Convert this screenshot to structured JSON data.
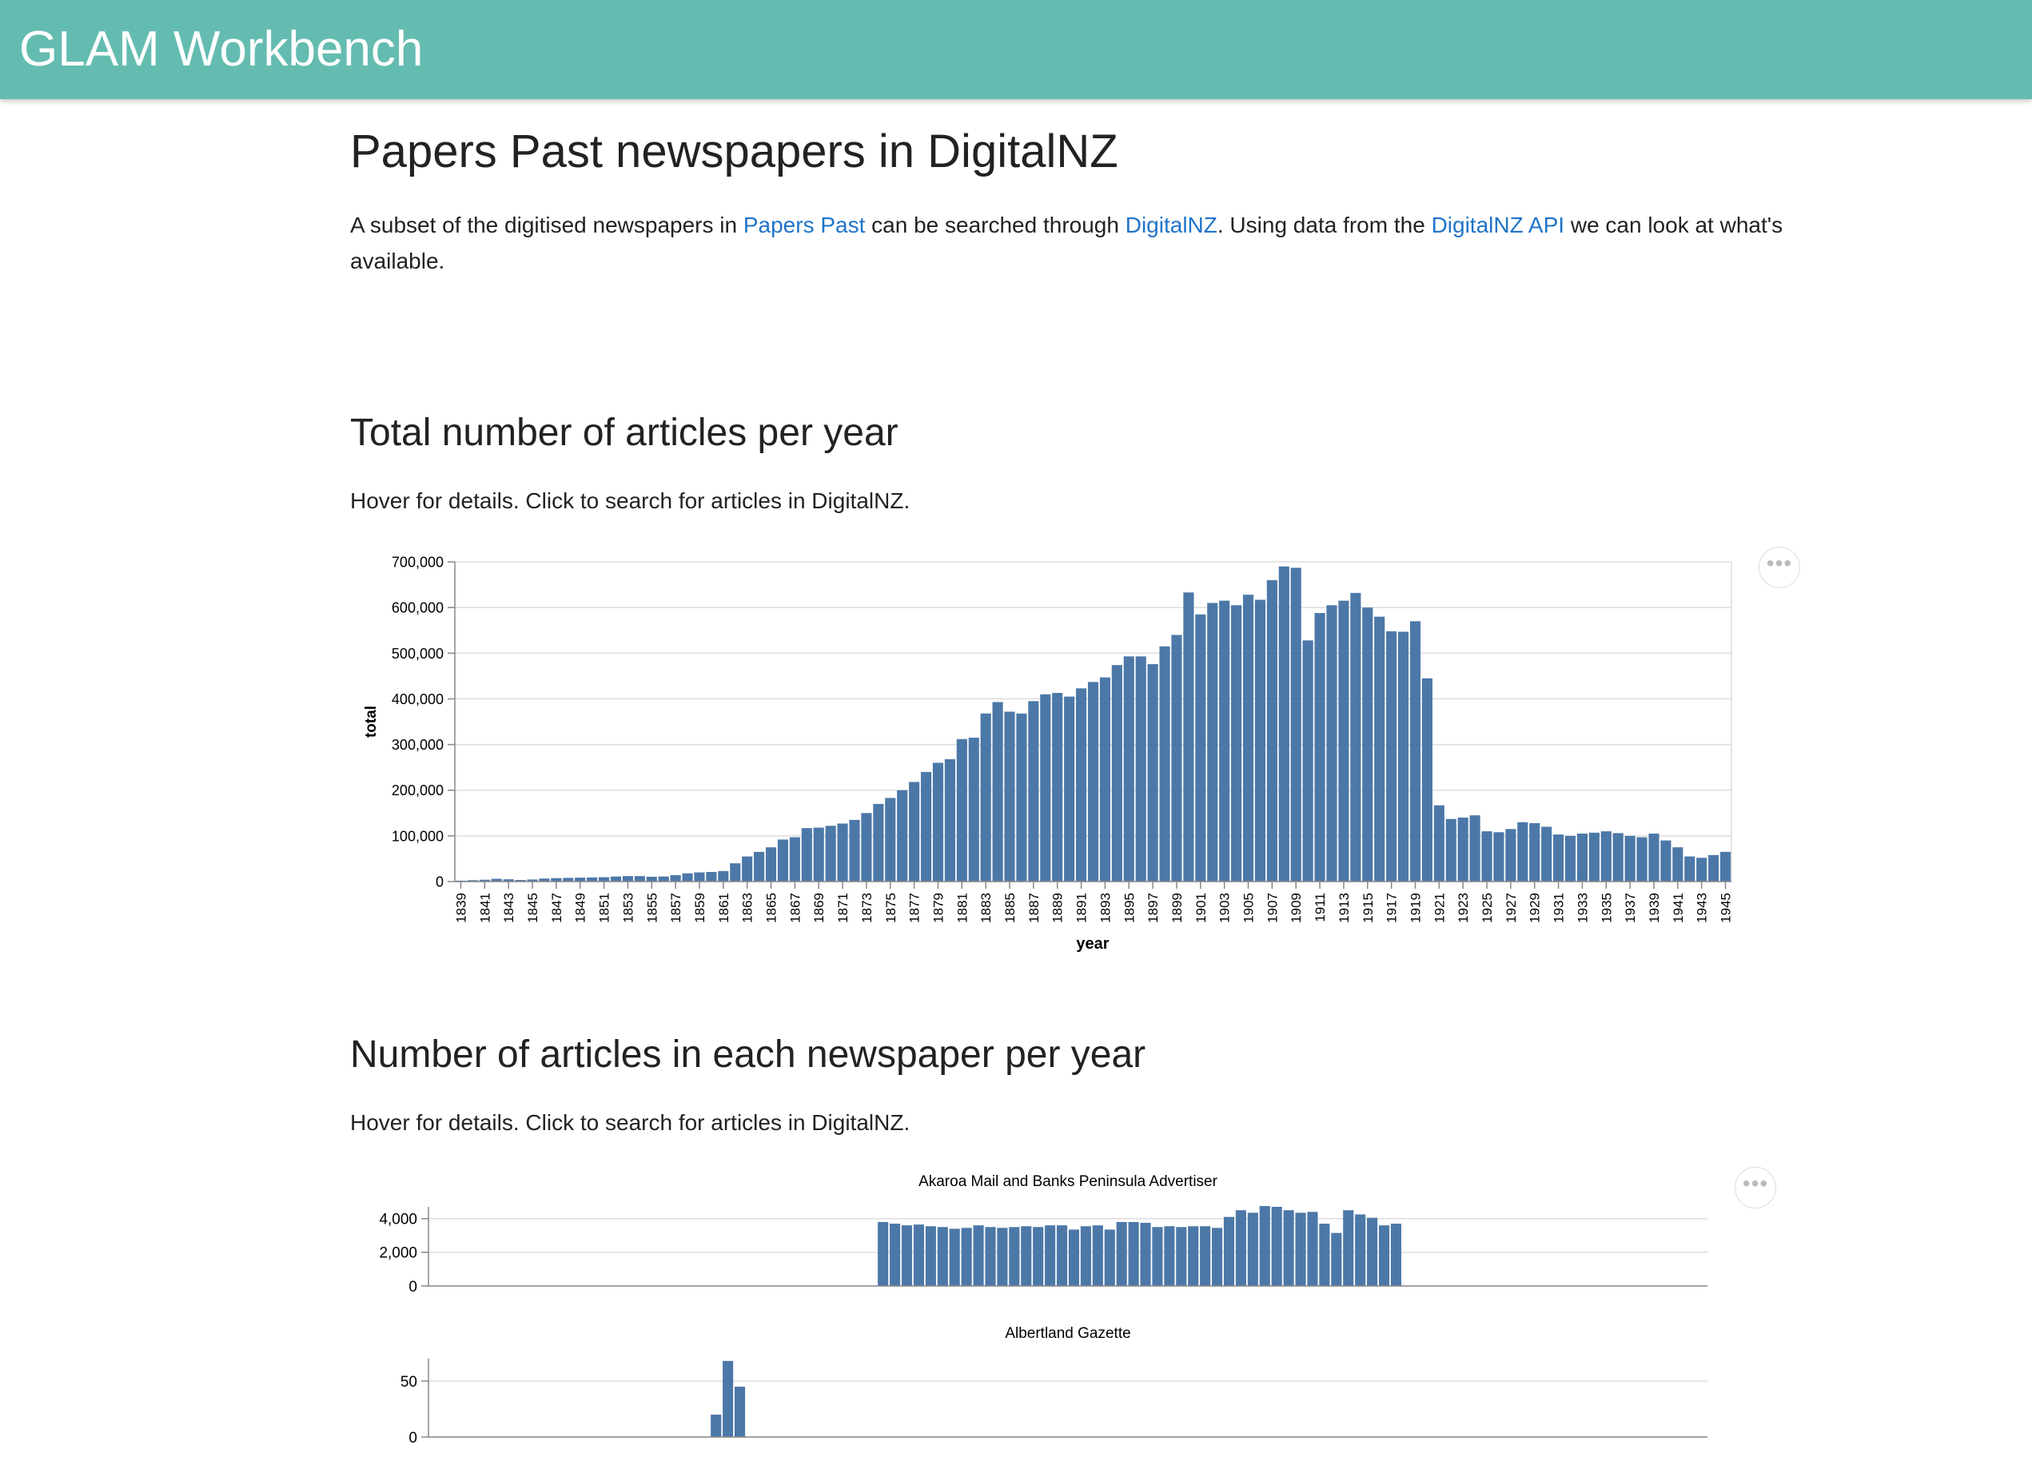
{
  "navbar": {
    "brand": "GLAM Workbench"
  },
  "page": {
    "title": "Papers Past newspapers in DigitalNZ",
    "intro": {
      "text1": "A subset of the digitised newspapers in ",
      "link1": "Papers Past",
      "text2": " can be searched through ",
      "link2": "DigitalNZ",
      "text3": ". Using data from the ",
      "link3": "DigitalNZ API",
      "text4": " we can look at what's available."
    }
  },
  "section1": {
    "heading": "Total number of articles per year",
    "hint": "Hover for details. Click to search for articles in DigitalNZ.",
    "menu_icon": "more-horizontal-icon"
  },
  "section2": {
    "heading": "Number of articles in each newspaper per year",
    "hint": "Hover for details. Click to search for articles in DigitalNZ.",
    "menu_icon": "more-horizontal-icon"
  },
  "colors": {
    "bar": "#4c78a8",
    "navbar": "#64bcb0",
    "link": "#1f74c9"
  },
  "chart_data": [
    {
      "type": "bar",
      "title": "",
      "xlabel": "year",
      "ylabel": "total",
      "ylim": [
        0,
        700000
      ],
      "yticks": [
        0,
        100000,
        200000,
        300000,
        400000,
        500000,
        600000,
        700000
      ],
      "ytick_labels": [
        "0",
        "100,000",
        "200,000",
        "300,000",
        "400,000",
        "500,000",
        "600,000",
        "700,000"
      ],
      "x_start": 1839,
      "x_end": 1945,
      "xtick_labels": [
        "1839",
        "1841",
        "1843",
        "1845",
        "1847",
        "1849",
        "1851",
        "1853",
        "1855",
        "1857",
        "1859",
        "1861",
        "1863",
        "1865",
        "1867",
        "1869",
        "1871",
        "1873",
        "1875",
        "1877",
        "1879",
        "1881",
        "1883",
        "1885",
        "1887",
        "1889",
        "1891",
        "1893",
        "1895",
        "1897",
        "1899",
        "1901",
        "1903",
        "1905",
        "1907",
        "1909",
        "1911",
        "1913",
        "1915",
        "1917",
        "1919",
        "1921",
        "1923",
        "1925",
        "1927",
        "1929",
        "1931",
        "1933",
        "1935",
        "1937",
        "1939",
        "1941",
        "1943",
        "1945"
      ],
      "grid": true,
      "values": [
        2000,
        3000,
        4000,
        6000,
        5000,
        3500,
        4500,
        6500,
        7500,
        8000,
        8500,
        9000,
        9500,
        11000,
        12000,
        12000,
        10500,
        11000,
        14000,
        18000,
        20000,
        21000,
        23000,
        40000,
        55000,
        65000,
        75000,
        92000,
        97000,
        117000,
        118000,
        122000,
        127000,
        135000,
        150000,
        170000,
        183000,
        200000,
        218000,
        240000,
        260000,
        268000,
        312000,
        315000,
        368000,
        393000,
        372000,
        368000,
        395000,
        410000,
        413000,
        405000,
        423000,
        437000,
        447000,
        474000,
        493000,
        493000,
        476000,
        515000,
        540000,
        633000,
        585000,
        610000,
        615000,
        605000,
        628000,
        617000,
        660000,
        690000,
        687000,
        528000,
        588000,
        605000,
        615000,
        632000,
        600000,
        580000,
        548000,
        547000,
        570000,
        445000,
        167000,
        137000,
        140000,
        145000,
        110000,
        108000,
        115000,
        130000,
        128000,
        120000,
        103000,
        100000,
        105000,
        107000,
        110000,
        106000,
        100000,
        97000,
        105000,
        90000,
        75000,
        55000,
        52000,
        58000,
        65000
      ]
    },
    {
      "type": "bar",
      "title": "Akaroa Mail and Banks Peninsula Advertiser",
      "xlabel": "",
      "ylabel": "",
      "ylim": [
        0,
        4700
      ],
      "yticks": [
        0,
        2000,
        4000
      ],
      "ytick_labels": [
        "0",
        "2,000",
        "4,000"
      ],
      "grid": true,
      "x_start": 1876,
      "values": [
        3800,
        3700,
        3600,
        3650,
        3550,
        3500,
        3400,
        3450,
        3600,
        3500,
        3450,
        3500,
        3550,
        3500,
        3600,
        3600,
        3350,
        3550,
        3600,
        3350,
        3800,
        3800,
        3750,
        3500,
        3550,
        3500,
        3550,
        3550,
        3450,
        4100,
        4500,
        4350,
        4750,
        4700,
        4500,
        4350,
        4400,
        3700,
        3150,
        4500,
        4250,
        4050,
        3600,
        3700
      ]
    },
    {
      "type": "bar",
      "title": "Albertland Gazette",
      "xlabel": "",
      "ylabel": "",
      "ylim": [
        0,
        70
      ],
      "yticks": [
        0,
        50
      ],
      "ytick_labels": [
        "0",
        "50"
      ],
      "grid": true,
      "x_start": 1862,
      "values": [
        20,
        68,
        45
      ]
    }
  ]
}
